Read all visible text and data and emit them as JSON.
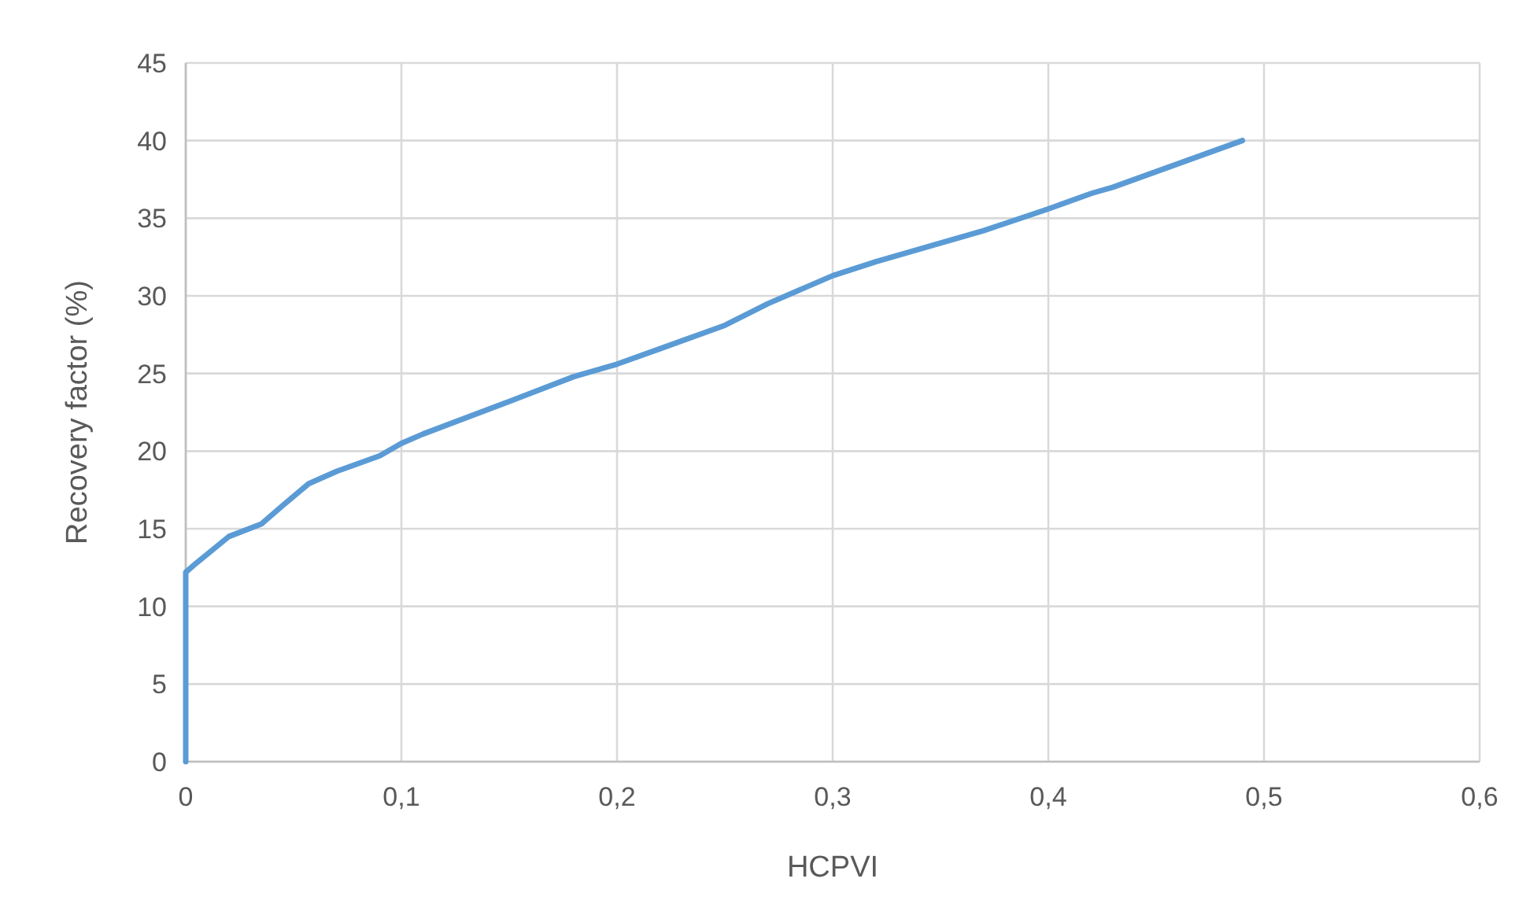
{
  "chart_data": {
    "type": "line",
    "xlabel": "HCPVI",
    "ylabel": "Recovery factor (%)",
    "grid": true,
    "marker": "none",
    "line_style": "solid",
    "xlim": [
      0,
      0.6
    ],
    "xticks": [
      0,
      {
        "value": 0.1,
        "label": "0,1"
      },
      {
        "value": 0.2,
        "label": "0,2"
      },
      {
        "value": 0.3,
        "label": "0,3"
      },
      {
        "value": 0.4,
        "label": "0,4"
      },
      {
        "value": 0.5,
        "label": "0,5"
      },
      {
        "value": 0.6,
        "label": "0,6"
      }
    ],
    "ylim": [
      0,
      45
    ],
    "yticks": [
      0,
      5,
      10,
      15,
      20,
      25,
      30,
      35,
      40,
      45
    ],
    "series": [
      {
        "color": "#5b9bd5",
        "x": [
          0,
          0,
          0.005,
          0.02,
          0.035,
          0.045,
          0.057,
          0.07,
          0.09,
          0.1,
          0.11,
          0.15,
          0.18,
          0.2,
          0.22,
          0.25,
          0.27,
          0.3,
          0.32,
          0.35,
          0.37,
          0.4,
          0.42,
          0.43,
          0.45,
          0.47,
          0.49
        ],
        "values": [
          0,
          12.2,
          12.8,
          14.5,
          15.3,
          16.5,
          17.9,
          18.7,
          19.7,
          20.5,
          21.1,
          23.2,
          24.8,
          25.6,
          26.6,
          28.1,
          29.5,
          31.3,
          32.2,
          33.4,
          34.2,
          35.6,
          36.6,
          37,
          38,
          39,
          40
        ]
      }
    ]
  }
}
